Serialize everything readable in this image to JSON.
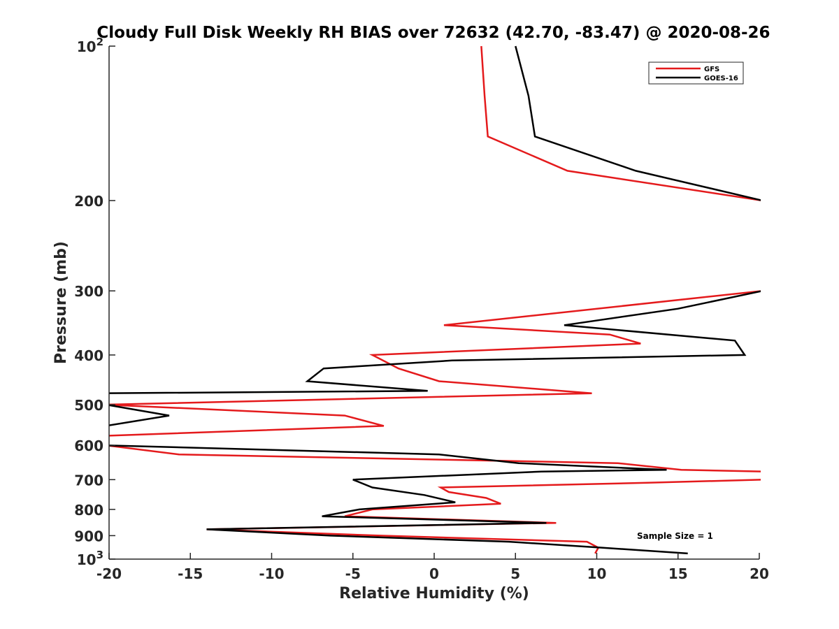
{
  "chart_data": {
    "type": "line",
    "title": "Cloudy Full Disk Weekly RH BIAS over 72632 (42.70, -83.47) @ 2020-08-26",
    "xlabel": "Relative Humidity (%)",
    "ylabel": "Pressure (mb)",
    "xlim": [
      -20,
      20
    ],
    "ylim": [
      100,
      1000
    ],
    "y_scale": "log",
    "y_reversed": true,
    "grid": false,
    "legend_position": "top-right",
    "x_ticks": [
      -20,
      -15,
      -10,
      -5,
      0,
      5,
      10,
      15,
      20
    ],
    "y_ticks": [
      {
        "value": 100,
        "base": "10",
        "exp": "2"
      },
      {
        "value": 200,
        "label": "200"
      },
      {
        "value": 300,
        "label": "300"
      },
      {
        "value": 400,
        "label": "400"
      },
      {
        "value": 500,
        "label": "500"
      },
      {
        "value": 600,
        "label": "600"
      },
      {
        "value": 700,
        "label": "700"
      },
      {
        "value": 800,
        "label": "800"
      },
      {
        "value": 900,
        "label": "900"
      },
      {
        "value": 1000,
        "base": "10",
        "exp": "3"
      }
    ],
    "annotation": "Sample Size = 1",
    "series": [
      {
        "name": "GFS",
        "color": "#e41a1c",
        "points": [
          {
            "x": 2.9,
            "y": 100
          },
          {
            "x": 3.1,
            "y": 125
          },
          {
            "x": 3.3,
            "y": 150
          },
          {
            "x": 8.2,
            "y": 175
          },
          {
            "x": 20.2,
            "y": 200
          },
          {
            "x": 20.2,
            "y": 300
          },
          {
            "x": 0.6,
            "y": 350
          },
          {
            "x": 10.8,
            "y": 365
          },
          {
            "x": 12.7,
            "y": 380
          },
          {
            "x": -3.8,
            "y": 400
          },
          {
            "x": -2.2,
            "y": 425
          },
          {
            "x": 0.3,
            "y": 450
          },
          {
            "x": 9.7,
            "y": 475
          },
          {
            "x": -20.2,
            "y": 500
          },
          {
            "x": -5.5,
            "y": 525
          },
          {
            "x": -3.1,
            "y": 550
          },
          {
            "x": -20.2,
            "y": 575
          },
          {
            "x": -20.2,
            "y": 600
          },
          {
            "x": -15.7,
            "y": 625
          },
          {
            "x": 11.3,
            "y": 650
          },
          {
            "x": 15.2,
            "y": 670
          },
          {
            "x": 20.2,
            "y": 675
          },
          {
            "x": 20.2,
            "y": 700
          },
          {
            "x": 13.1,
            "y": 710
          },
          {
            "x": 0.4,
            "y": 725
          },
          {
            "x": 0.9,
            "y": 740
          },
          {
            "x": 3.2,
            "y": 760
          },
          {
            "x": 4.1,
            "y": 780
          },
          {
            "x": -3.8,
            "y": 800
          },
          {
            "x": -5.5,
            "y": 825
          },
          {
            "x": 7.5,
            "y": 850
          },
          {
            "x": -14.0,
            "y": 875
          },
          {
            "x": -3.3,
            "y": 900
          },
          {
            "x": 9.4,
            "y": 925
          },
          {
            "x": 10.1,
            "y": 950
          },
          {
            "x": 9.9,
            "y": 975
          }
        ]
      },
      {
        "name": "GOES-16",
        "color": "#000000",
        "points": [
          {
            "x": 5.0,
            "y": 100
          },
          {
            "x": 5.8,
            "y": 125
          },
          {
            "x": 6.2,
            "y": 150
          },
          {
            "x": 12.4,
            "y": 175
          },
          {
            "x": 20.2,
            "y": 200
          },
          {
            "x": 20.2,
            "y": 300
          },
          {
            "x": 15.0,
            "y": 325
          },
          {
            "x": 8.0,
            "y": 350
          },
          {
            "x": 18.5,
            "y": 375
          },
          {
            "x": 19.1,
            "y": 400
          },
          {
            "x": 1.1,
            "y": 410
          },
          {
            "x": -6.8,
            "y": 425
          },
          {
            "x": -7.8,
            "y": 450
          },
          {
            "x": -0.4,
            "y": 470
          },
          {
            "x": -20.2,
            "y": 475
          },
          {
            "x": -20.2,
            "y": 500
          },
          {
            "x": -18.6,
            "y": 510
          },
          {
            "x": -16.3,
            "y": 525
          },
          {
            "x": -20.2,
            "y": 550
          },
          {
            "x": -20.2,
            "y": 600
          },
          {
            "x": 0.3,
            "y": 625
          },
          {
            "x": 5.2,
            "y": 650
          },
          {
            "x": 14.3,
            "y": 670
          },
          {
            "x": 6.6,
            "y": 675
          },
          {
            "x": -5.0,
            "y": 700
          },
          {
            "x": -3.8,
            "y": 725
          },
          {
            "x": -0.6,
            "y": 750
          },
          {
            "x": 1.3,
            "y": 775
          },
          {
            "x": -4.6,
            "y": 800
          },
          {
            "x": -6.9,
            "y": 825
          },
          {
            "x": 6.9,
            "y": 850
          },
          {
            "x": -14.0,
            "y": 875
          },
          {
            "x": -6.4,
            "y": 900
          },
          {
            "x": 4.6,
            "y": 925
          },
          {
            "x": 10.3,
            "y": 950
          },
          {
            "x": 15.6,
            "y": 975
          }
        ]
      }
    ]
  }
}
